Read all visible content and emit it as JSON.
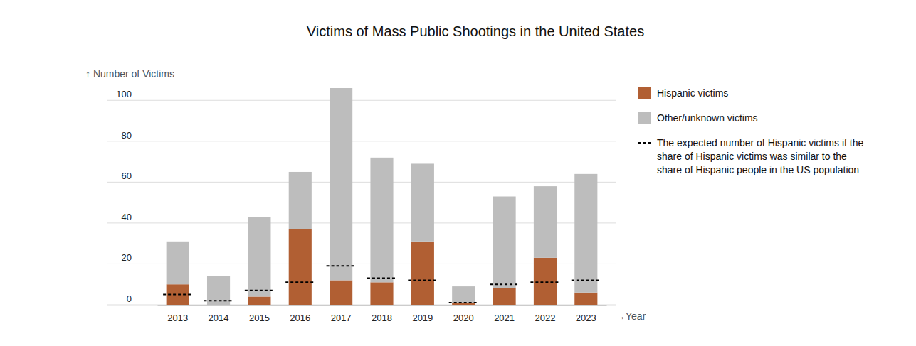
{
  "chart_data": {
    "type": "bar",
    "title": "Victims of Mass Public Shootings in the United States",
    "y_label": "↑ Number of Victims",
    "x_label": "→Year",
    "categories": [
      "2013",
      "2014",
      "2015",
      "2016",
      "2017",
      "2018",
      "2019",
      "2020",
      "2021",
      "2022",
      "2023"
    ],
    "series": [
      {
        "name": "Hispanic victims",
        "color": "#b15f33",
        "type": "bar",
        "values": [
          10,
          0,
          4,
          37,
          12,
          11,
          31,
          1,
          8,
          23,
          6
        ]
      },
      {
        "name": "Other/unknown victims",
        "color": "#bdbdbd",
        "type": "bar",
        "values": [
          21,
          14,
          39,
          28,
          94,
          61,
          38,
          8,
          45,
          35,
          58
        ]
      },
      {
        "name": "The expected number of Hispanic victims if the share of Hispanic victims was similar to the share of Hispanic people in the US population",
        "color": "#000000",
        "type": "scatter",
        "marker": "hline",
        "line_style": "dashed",
        "values": [
          5,
          2,
          7,
          11,
          19,
          13,
          12,
          1,
          10,
          11,
          12
        ]
      }
    ],
    "stacked": true,
    "ylim": [
      0,
      106
    ],
    "yticks": [
      0,
      20,
      40,
      60,
      80,
      100
    ],
    "grid": true,
    "legend": "right"
  }
}
